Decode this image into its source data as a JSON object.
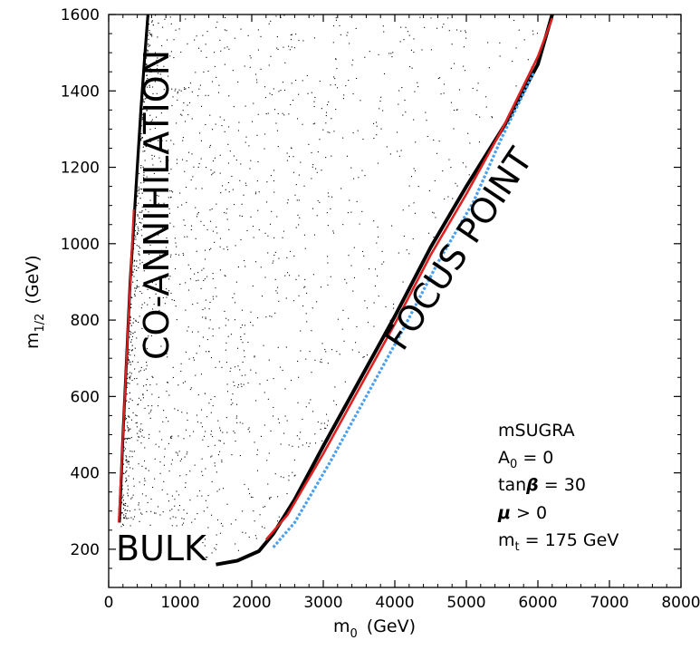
{
  "chart_data": {
    "type": "scatter",
    "title": "",
    "xlabel": "m",
    "xlabel_sub": "0",
    "xlabel_unit": "(GeV)",
    "ylabel": "m",
    "ylabel_sub": "1/2",
    "ylabel_unit": "(GeV)",
    "xlim": [
      0,
      8000
    ],
    "ylim": [
      100,
      1600
    ],
    "x_ticks": [
      0,
      1000,
      2000,
      3000,
      4000,
      5000,
      6000,
      7000,
      8000
    ],
    "y_ticks": [
      200,
      400,
      600,
      800,
      1000,
      1200,
      1400,
      1600
    ],
    "grid": false,
    "region_labels": [
      {
        "text": "CO-ANNIHILATION",
        "x": 640,
        "y": 1000,
        "rotation": -90
      },
      {
        "text": "FOCUS POINT",
        "x": 4950,
        "y": 1000,
        "rotation": -56
      },
      {
        "text": "BULK",
        "x": 750,
        "y": 200,
        "rotation": 0
      }
    ],
    "info_box": {
      "line1": "mSUGRA",
      "line2_main": "A",
      "line2_sub": "0",
      "line2_rest": " = 0",
      "line3_main": "tan",
      "line3_greek": "β",
      "line3_rest": " = 30",
      "line4_greek": "μ",
      "line4_rest": " > 0",
      "line5_main": "m",
      "line5_sub": "t",
      "line5_rest": " = 175 GeV"
    },
    "series": [
      {
        "kind": "coannihilation-band",
        "color": "#000000",
        "x": [
          150,
          200,
          250,
          300,
          350,
          400,
          450,
          500,
          550
        ],
        "y": [
          270,
          500,
          700,
          900,
          1050,
          1200,
          1350,
          1480,
          1600
        ]
      },
      {
        "kind": "coannihilation-line",
        "color": "#e02020",
        "x": [
          140,
          350
        ],
        "y": [
          270,
          1090
        ]
      },
      {
        "kind": "focus-point-band",
        "color": "#000000",
        "x": [
          1500,
          1800,
          2100,
          2300,
          2600,
          3000,
          3500,
          4000,
          4500,
          5000,
          5200,
          5600,
          6000,
          6200
        ],
        "y": [
          160,
          170,
          195,
          240,
          330,
          470,
          640,
          810,
          990,
          1150,
          1210,
          1330,
          1470,
          1600
        ]
      },
      {
        "kind": "focus-point-red",
        "color": "#e02020",
        "x": [
          2200,
          2500,
          3000,
          3500,
          4000,
          4500,
          5000,
          5500,
          6000,
          6200
        ],
        "y": [
          225,
          290,
          450,
          620,
          790,
          970,
          1130,
          1300,
          1490,
          1590
        ]
      },
      {
        "kind": "focus-point-blue",
        "color": "#4aa0f0",
        "x": [
          2300,
          2600,
          3100,
          3600,
          4100,
          4600,
          5100,
          5500,
          5950
        ],
        "y": [
          205,
          270,
          430,
          600,
          770,
          950,
          1110,
          1280,
          1450
        ]
      }
    ],
    "background_scatter": {
      "color": "#000000",
      "region": "between coannihilation and focus-point bands"
    }
  }
}
